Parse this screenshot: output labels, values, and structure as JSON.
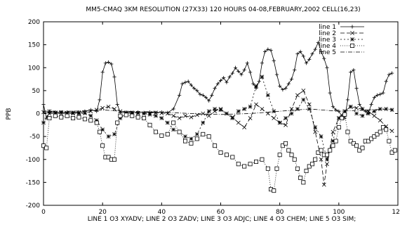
{
  "chart_data": {
    "type": "line",
    "title": "MM5-CMAQ 3KM RESOLUTION (27X33) 120 HOURS 04-08,FEBRUARY,2002  CELL(16,23)",
    "xlabel": "LINE 1 O3  XYADV;  LINE 2 O3  ZADV;  LINE 3 O3  ADJC;  LINE 4 O3  CHEM;  LINE 5 O3  SIM;",
    "ylabel": "PPB",
    "xlim": [
      0,
      120
    ],
    "ylim": [
      -200,
      200
    ],
    "x_ticks": [
      0,
      20,
      40,
      60,
      80,
      100,
      120
    ],
    "y_ticks": [
      -200,
      -150,
      -100,
      -50,
      0,
      50,
      100,
      150,
      200
    ],
    "x_tick_labels": [
      "0",
      "20",
      "40",
      "60",
      "80",
      "100",
      "120"
    ],
    "y_tick_labels": [
      "-200",
      "-150",
      "-100",
      "-50",
      "0",
      "50",
      "100",
      "150",
      "200"
    ],
    "grid": false,
    "legend_position": "top-right",
    "series": [
      {
        "name": "line 1",
        "marker": "plus",
        "points": [
          [
            0,
            20
          ],
          [
            1,
            -10
          ],
          [
            2,
            2
          ],
          [
            4,
            3
          ],
          [
            6,
            2
          ],
          [
            8,
            3
          ],
          [
            10,
            2
          ],
          [
            12,
            3
          ],
          [
            14,
            5
          ],
          [
            16,
            8
          ],
          [
            18,
            5
          ],
          [
            19,
            30
          ],
          [
            20,
            90
          ],
          [
            21,
            110
          ],
          [
            22,
            112
          ],
          [
            23,
            108
          ],
          [
            24,
            80
          ],
          [
            25,
            20
          ],
          [
            26,
            2
          ],
          [
            28,
            3
          ],
          [
            30,
            2
          ],
          [
            32,
            3
          ],
          [
            34,
            2
          ],
          [
            36,
            3
          ],
          [
            38,
            2
          ],
          [
            40,
            3
          ],
          [
            42,
            2
          ],
          [
            44,
            10
          ],
          [
            46,
            40
          ],
          [
            47,
            65
          ],
          [
            48,
            68
          ],
          [
            49,
            70
          ],
          [
            50,
            62
          ],
          [
            51,
            55
          ],
          [
            52,
            50
          ],
          [
            53,
            42
          ],
          [
            54,
            40
          ],
          [
            55,
            35
          ],
          [
            56,
            28
          ],
          [
            57,
            40
          ],
          [
            58,
            55
          ],
          [
            59,
            65
          ],
          [
            60,
            72
          ],
          [
            61,
            78
          ],
          [
            62,
            68
          ],
          [
            63,
            80
          ],
          [
            64,
            88
          ],
          [
            65,
            100
          ],
          [
            66,
            92
          ],
          [
            67,
            85
          ],
          [
            68,
            95
          ],
          [
            69,
            110
          ],
          [
            70,
            90
          ],
          [
            71,
            65
          ],
          [
            72,
            55
          ],
          [
            73,
            70
          ],
          [
            74,
            110
          ],
          [
            75,
            135
          ],
          [
            76,
            140
          ],
          [
            77,
            138
          ],
          [
            78,
            115
          ],
          [
            79,
            85
          ],
          [
            80,
            60
          ],
          [
            81,
            52
          ],
          [
            82,
            55
          ],
          [
            83,
            65
          ],
          [
            84,
            75
          ],
          [
            85,
            95
          ],
          [
            86,
            130
          ],
          [
            87,
            135
          ],
          [
            88,
            125
          ],
          [
            89,
            110
          ],
          [
            90,
            118
          ],
          [
            91,
            130
          ],
          [
            92,
            140
          ],
          [
            93,
            155
          ],
          [
            94,
            135
          ],
          [
            95,
            120
          ],
          [
            96,
            100
          ],
          [
            97,
            45
          ],
          [
            98,
            15
          ],
          [
            99,
            8
          ],
          [
            100,
            5
          ],
          [
            101,
            -5
          ],
          [
            102,
            -10
          ],
          [
            103,
            30
          ],
          [
            104,
            90
          ],
          [
            105,
            95
          ],
          [
            106,
            55
          ],
          [
            107,
            20
          ],
          [
            108,
            10
          ],
          [
            109,
            5
          ],
          [
            110,
            0
          ],
          [
            111,
            20
          ],
          [
            112,
            35
          ],
          [
            113,
            40
          ],
          [
            114,
            42
          ],
          [
            115,
            45
          ],
          [
            116,
            70
          ],
          [
            117,
            85
          ],
          [
            118,
            88
          ]
        ]
      },
      {
        "name": "line 2",
        "marker": "x",
        "points": [
          [
            0,
            3
          ],
          [
            2,
            0
          ],
          [
            4,
            1
          ],
          [
            6,
            0
          ],
          [
            8,
            1
          ],
          [
            10,
            0
          ],
          [
            12,
            2
          ],
          [
            14,
            1
          ],
          [
            16,
            5
          ],
          [
            18,
            8
          ],
          [
            20,
            12
          ],
          [
            22,
            15
          ],
          [
            24,
            10
          ],
          [
            26,
            5
          ],
          [
            28,
            2
          ],
          [
            30,
            0
          ],
          [
            32,
            1
          ],
          [
            34,
            0
          ],
          [
            36,
            1
          ],
          [
            38,
            2
          ],
          [
            40,
            1
          ],
          [
            42,
            0
          ],
          [
            44,
            -5
          ],
          [
            46,
            -10
          ],
          [
            48,
            -5
          ],
          [
            50,
            -8
          ],
          [
            52,
            -3
          ],
          [
            54,
            0
          ],
          [
            56,
            -5
          ],
          [
            58,
            5
          ],
          [
            60,
            10
          ],
          [
            62,
            0
          ],
          [
            64,
            -8
          ],
          [
            66,
            -20
          ],
          [
            68,
            -30
          ],
          [
            70,
            -10
          ],
          [
            72,
            20
          ],
          [
            74,
            10
          ],
          [
            76,
            0
          ],
          [
            78,
            -10
          ],
          [
            80,
            -20
          ],
          [
            82,
            -25
          ],
          [
            84,
            10
          ],
          [
            86,
            40
          ],
          [
            88,
            50
          ],
          [
            90,
            20
          ],
          [
            92,
            -40
          ],
          [
            94,
            -100
          ],
          [
            95,
            -155
          ],
          [
            96,
            -110
          ],
          [
            98,
            -40
          ],
          [
            100,
            -10
          ],
          [
            102,
            5
          ],
          [
            104,
            15
          ],
          [
            106,
            12
          ],
          [
            108,
            10
          ],
          [
            110,
            5
          ],
          [
            112,
            -5
          ],
          [
            114,
            -15
          ],
          [
            116,
            -28
          ],
          [
            118,
            -38
          ]
        ]
      },
      {
        "name": "line 3",
        "marker": "asterisk",
        "points": [
          [
            0,
            -20
          ],
          [
            2,
            5
          ],
          [
            4,
            2
          ],
          [
            6,
            3
          ],
          [
            8,
            1
          ],
          [
            10,
            2
          ],
          [
            12,
            0
          ],
          [
            14,
            1
          ],
          [
            16,
            -5
          ],
          [
            18,
            -15
          ],
          [
            20,
            -35
          ],
          [
            22,
            -50
          ],
          [
            24,
            -45
          ],
          [
            26,
            -10
          ],
          [
            28,
            0
          ],
          [
            30,
            2
          ],
          [
            32,
            1
          ],
          [
            34,
            0
          ],
          [
            36,
            -2
          ],
          [
            38,
            -5
          ],
          [
            40,
            -10
          ],
          [
            42,
            -20
          ],
          [
            44,
            -35
          ],
          [
            46,
            -40
          ],
          [
            48,
            -50
          ],
          [
            50,
            -55
          ],
          [
            52,
            -45
          ],
          [
            54,
            -20
          ],
          [
            56,
            5
          ],
          [
            58,
            10
          ],
          [
            60,
            8
          ],
          [
            62,
            0
          ],
          [
            64,
            -10
          ],
          [
            66,
            5
          ],
          [
            68,
            10
          ],
          [
            70,
            15
          ],
          [
            72,
            60
          ],
          [
            74,
            80
          ],
          [
            76,
            40
          ],
          [
            78,
            5
          ],
          [
            80,
            -20
          ],
          [
            82,
            -10
          ],
          [
            84,
            0
          ],
          [
            86,
            10
          ],
          [
            88,
            30
          ],
          [
            90,
            10
          ],
          [
            92,
            -30
          ],
          [
            94,
            -50
          ],
          [
            96,
            -100
          ],
          [
            98,
            -60
          ],
          [
            100,
            -10
          ],
          [
            102,
            5
          ],
          [
            104,
            15
          ],
          [
            106,
            0
          ],
          [
            108,
            -5
          ],
          [
            110,
            0
          ],
          [
            112,
            5
          ],
          [
            114,
            10
          ],
          [
            116,
            10
          ],
          [
            118,
            8
          ]
        ]
      },
      {
        "name": "line 4",
        "marker": "square",
        "points": [
          [
            0,
            -70
          ],
          [
            1,
            -75
          ],
          [
            2,
            -10
          ],
          [
            4,
            -5
          ],
          [
            6,
            -8
          ],
          [
            8,
            -5
          ],
          [
            10,
            -10
          ],
          [
            12,
            -8
          ],
          [
            14,
            -12
          ],
          [
            16,
            -15
          ],
          [
            18,
            -20
          ],
          [
            19,
            -40
          ],
          [
            20,
            -70
          ],
          [
            21,
            -95
          ],
          [
            22,
            -95
          ],
          [
            23,
            -100
          ],
          [
            24,
            -100
          ],
          [
            25,
            -20
          ],
          [
            26,
            -5
          ],
          [
            28,
            -3
          ],
          [
            30,
            -5
          ],
          [
            32,
            -8
          ],
          [
            34,
            -10
          ],
          [
            36,
            -25
          ],
          [
            38,
            -40
          ],
          [
            40,
            -48
          ],
          [
            42,
            -45
          ],
          [
            44,
            -20
          ],
          [
            46,
            -40
          ],
          [
            48,
            -60
          ],
          [
            50,
            -65
          ],
          [
            52,
            -55
          ],
          [
            54,
            -45
          ],
          [
            56,
            -50
          ],
          [
            58,
            -70
          ],
          [
            60,
            -85
          ],
          [
            62,
            -90
          ],
          [
            64,
            -95
          ],
          [
            66,
            -110
          ],
          [
            68,
            -115
          ],
          [
            70,
            -110
          ],
          [
            72,
            -105
          ],
          [
            74,
            -100
          ],
          [
            76,
            -120
          ],
          [
            77,
            -165
          ],
          [
            78,
            -168
          ],
          [
            79,
            -120
          ],
          [
            80,
            -90
          ],
          [
            81,
            -70
          ],
          [
            82,
            -65
          ],
          [
            83,
            -80
          ],
          [
            84,
            -90
          ],
          [
            85,
            -100
          ],
          [
            86,
            -120
          ],
          [
            87,
            -140
          ],
          [
            88,
            -150
          ],
          [
            89,
            -125
          ],
          [
            90,
            -115
          ],
          [
            91,
            -110
          ],
          [
            92,
            -100
          ],
          [
            93,
            -85
          ],
          [
            94,
            -80
          ],
          [
            95,
            -90
          ],
          [
            96,
            -90
          ],
          [
            97,
            -80
          ],
          [
            98,
            -70
          ],
          [
            99,
            -60
          ],
          [
            100,
            -30
          ],
          [
            101,
            -10
          ],
          [
            102,
            -2
          ],
          [
            103,
            -40
          ],
          [
            104,
            -60
          ],
          [
            105,
            -65
          ],
          [
            106,
            -70
          ],
          [
            107,
            -80
          ],
          [
            108,
            -75
          ],
          [
            109,
            -60
          ],
          [
            110,
            -60
          ],
          [
            111,
            -55
          ],
          [
            112,
            -50
          ],
          [
            113,
            -45
          ],
          [
            114,
            -40
          ],
          [
            115,
            -30
          ],
          [
            116,
            -35
          ],
          [
            117,
            -60
          ],
          [
            118,
            -85
          ],
          [
            119,
            -80
          ]
        ]
      },
      {
        "name": "line 5",
        "marker": "none",
        "points": [
          [
            0,
            5
          ],
          [
            10,
            5
          ],
          [
            20,
            8
          ],
          [
            26,
            5
          ],
          [
            40,
            3
          ],
          [
            50,
            0
          ],
          [
            60,
            -2
          ],
          [
            70,
            0
          ],
          [
            80,
            5
          ],
          [
            90,
            10
          ],
          [
            100,
            5
          ],
          [
            110,
            8
          ],
          [
            118,
            10
          ]
        ]
      }
    ]
  }
}
